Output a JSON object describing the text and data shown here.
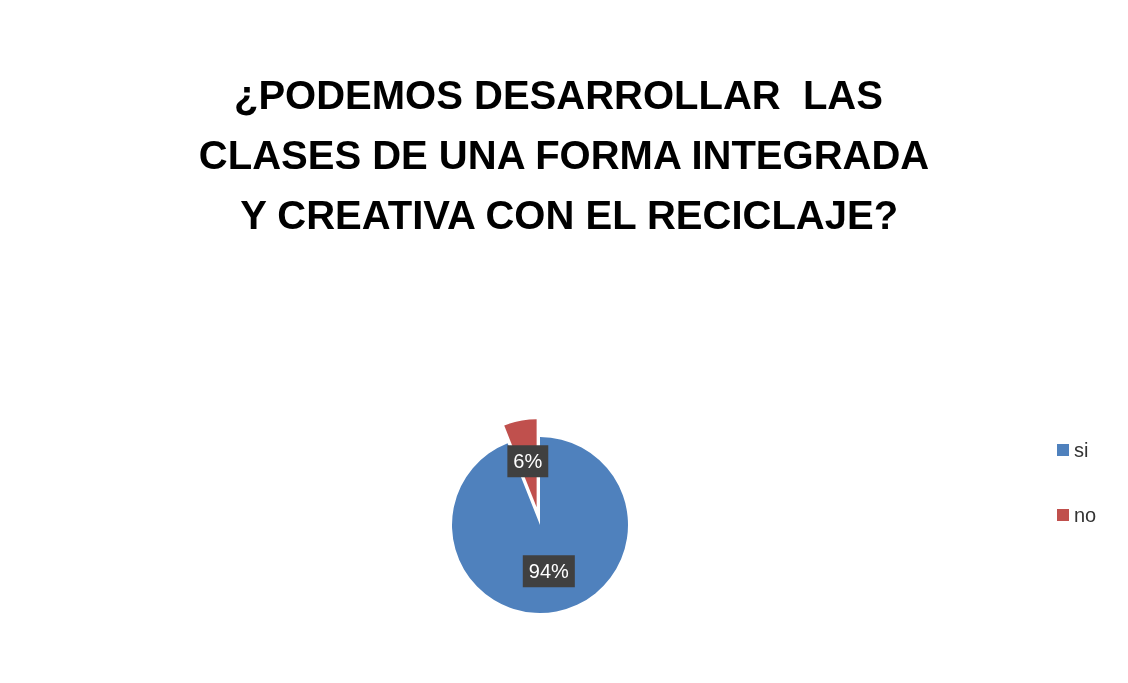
{
  "chart_data": {
    "type": "pie",
    "title": "¿PODEMOS DESARROLLAR  LAS CLASES DE UNA FORMA INTEGRADA Y CREATIVA CON EL RECICLAJE?",
    "categories": [
      "si",
      "no"
    ],
    "values": [
      94,
      6
    ],
    "colors": [
      "#4f81bd",
      "#c0504d"
    ],
    "value_labels": [
      "94%",
      "6%"
    ],
    "legend": "right"
  }
}
